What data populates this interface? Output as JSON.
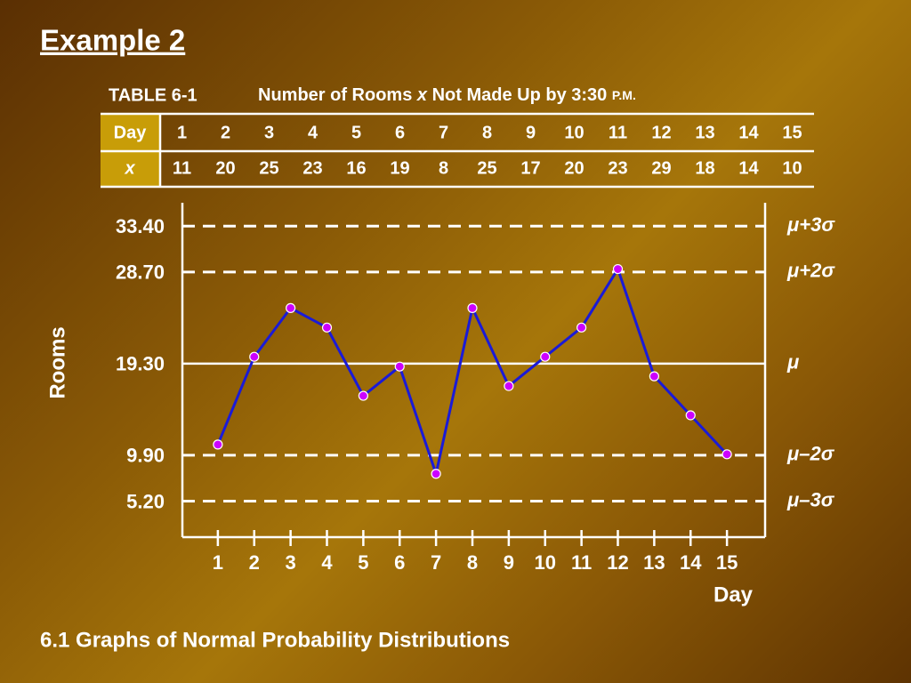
{
  "title": "Example 2",
  "footer": "6.1 Graphs of Normal Probability Distributions",
  "table": {
    "label": "TABLE 6-1",
    "caption": [
      "Number of Rooms",
      "x",
      "Not Made Up by 3:30",
      "P.M."
    ],
    "rows": [
      [
        "Day",
        "1",
        "2",
        "3",
        "4",
        "5",
        "6",
        "7",
        "8",
        "9",
        "10",
        "11",
        "12",
        "13",
        "14",
        "15"
      ],
      [
        "x",
        "11",
        "20",
        "25",
        "23",
        "16",
        "19",
        "8",
        "25",
        "17",
        "20",
        "23",
        "29",
        "18",
        "14",
        "10"
      ]
    ]
  },
  "chart_data": {
    "type": "line",
    "x": [
      1,
      2,
      3,
      4,
      5,
      6,
      7,
      8,
      9,
      10,
      11,
      12,
      13,
      14,
      15
    ],
    "values": [
      11,
      20,
      25,
      23,
      16,
      19,
      8,
      25,
      17,
      20,
      23,
      29,
      18,
      14,
      10
    ],
    "color": "#1a1ad8",
    "marker_color": "#cc00ff",
    "xlim": [
      0,
      16
    ],
    "xticks": [
      1,
      2,
      3,
      4,
      5,
      6,
      7,
      8,
      9,
      10,
      11,
      12,
      13,
      14,
      15
    ],
    "ylim": [
      1.5,
      35.8
    ],
    "yticks": [
      {
        "value": 33.4,
        "label": "33.40"
      },
      {
        "value": 28.7,
        "label": "28.70"
      },
      {
        "value": 19.3,
        "label": "19.30"
      },
      {
        "value": 9.9,
        "label": "9.90"
      },
      {
        "value": 5.2,
        "label": "5.20"
      }
    ],
    "limit_labels": [
      "μ+3σ",
      "μ+2σ",
      "μ",
      "μ–2σ",
      "μ–3σ"
    ],
    "line_styles": [
      "dashed",
      "dashed",
      "solid",
      "dashed",
      "dashed"
    ],
    "xlabel": "Day",
    "ylabel": "Rooms"
  }
}
